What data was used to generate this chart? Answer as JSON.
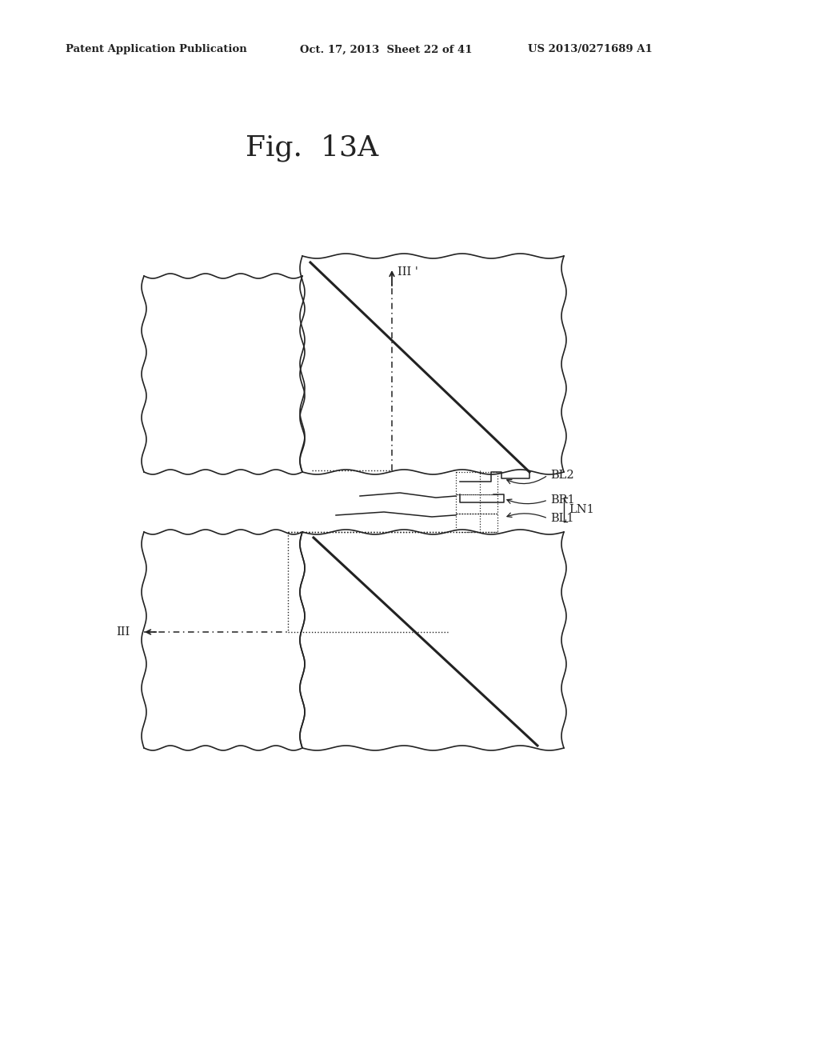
{
  "title": "Fig.  13A",
  "header_left": "Patent Application Publication",
  "header_mid": "Oct. 17, 2013  Sheet 22 of 41",
  "header_right": "US 2013/0271689 A1",
  "bg_color": "#ffffff",
  "line_color": "#222222",
  "label_BL2": "BL2",
  "label_BR1": "BR1",
  "label_BL1": "BL1",
  "label_LN1": "LN1",
  "label_III_prime": "III '",
  "label_III": "III"
}
